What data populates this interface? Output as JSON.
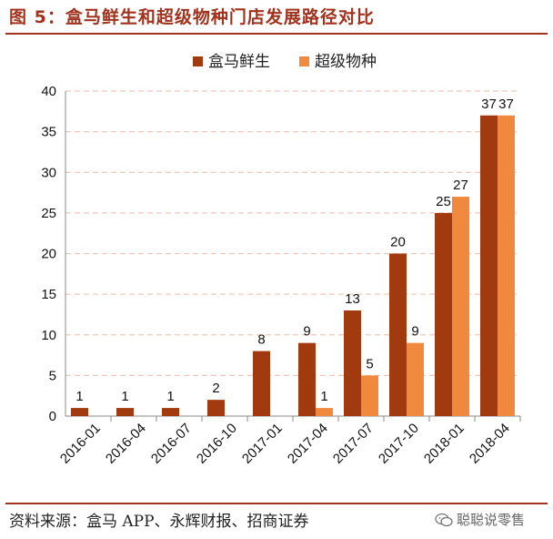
{
  "header": {
    "title": "图 5：盒马鲜生和超级物种门店发展路径对比"
  },
  "footer": {
    "source": "资料来源：盒马 APP、永辉财报、招商证券",
    "watermark": "聪聪说零售",
    "watermark_icon": "wechat-icon"
  },
  "colors": {
    "accent": "#a0321e",
    "series1": "#a23a10",
    "series2": "#f0893e",
    "grid": "#f0c8b8"
  },
  "chart_data": {
    "type": "bar",
    "categories": [
      "2016-01",
      "2016-04",
      "2016-07",
      "2016-10",
      "2017-01",
      "2017-04",
      "2017-07",
      "2017-10",
      "2018-01",
      "2018-04"
    ],
    "series": [
      {
        "name": "盒马鲜生",
        "values": [
          1,
          1,
          1,
          2,
          8,
          9,
          13,
          20,
          25,
          37
        ],
        "color": "#a23a10"
      },
      {
        "name": "超级物种",
        "values": [
          null,
          null,
          null,
          null,
          null,
          1,
          5,
          9,
          27,
          37
        ],
        "color": "#f0893e"
      }
    ],
    "title": "",
    "xlabel": "",
    "ylabel": "",
    "ylim": [
      0,
      40
    ],
    "yticks": [
      0,
      5,
      10,
      15,
      20,
      25,
      30,
      35,
      40
    ],
    "grid": true,
    "legend": "top-center",
    "data_labels": true
  }
}
